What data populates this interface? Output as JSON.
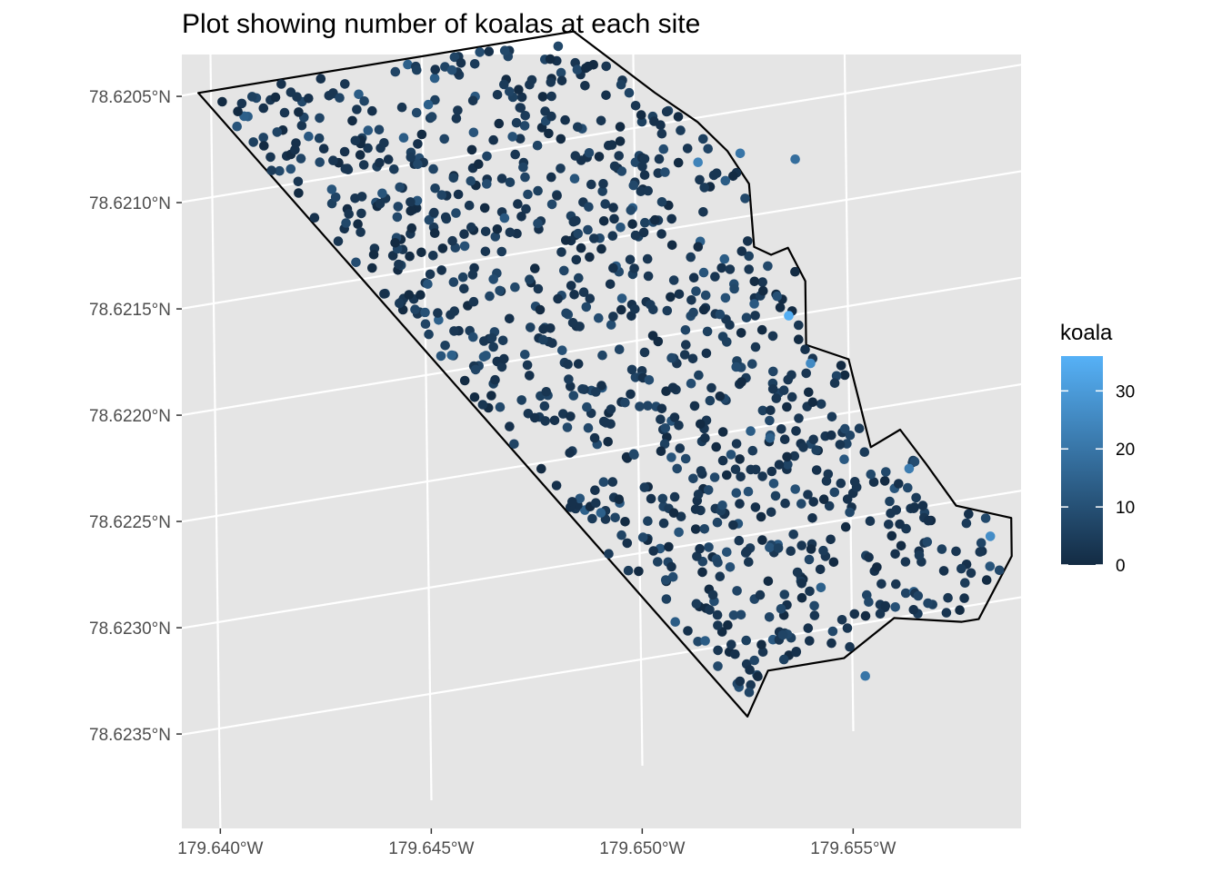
{
  "chart_data": {
    "type": "scatter",
    "title": "Plot showing number of koalas at each site",
    "xlabel": "",
    "ylabel": "",
    "x_ticks": [
      "179.640°W",
      "179.645°W",
      "179.650°W",
      "179.655°W"
    ],
    "y_ticks": [
      "78.6205°N",
      "78.6210°N",
      "78.6215°N",
      "78.6220°N",
      "78.6225°N",
      "78.6230°N",
      "78.6235°N"
    ],
    "x_tick_values": [
      -179.64,
      -179.645,
      -179.65,
      -179.655
    ],
    "y_tick_values": [
      78.6205,
      78.621,
      78.6215,
      78.622,
      78.6225,
      78.623,
      78.6235
    ],
    "xlim": [
      -179.6396,
      -179.6593
    ],
    "ylim": [
      78.62035,
      78.62394
    ],
    "grid": true,
    "point_count": 1000,
    "color_scale": {
      "name": "koala",
      "low_color": "#132B43",
      "high_color": "#56B1F7",
      "range": [
        0,
        36
      ],
      "ticks": [
        "0",
        "10",
        "20",
        "30"
      ],
      "tick_values": [
        0,
        10,
        20,
        30
      ]
    },
    "legend_placement": "right",
    "boundary": {
      "lon": [
        -179.6397,
        -179.6486,
        -179.6505,
        -179.6515,
        -179.6522,
        -179.6527,
        -179.6528,
        -179.6532,
        -179.6536,
        -179.654,
        -179.654,
        -179.655,
        -179.655,
        -179.6555,
        -179.6562,
        -179.6568,
        -179.6575,
        -179.6588,
        -179.6588,
        -179.658,
        -179.6576,
        -179.656,
        -179.6548,
        -179.653,
        -179.6525
      ],
      "lat": [
        78.6205,
        78.6205,
        78.62085,
        78.62102,
        78.62118,
        78.62135,
        78.62165,
        78.6217,
        78.62168,
        78.62185,
        78.62215,
        78.62225,
        78.62225,
        78.62268,
        78.62262,
        78.6228,
        78.62302,
        78.62312,
        78.6233,
        78.62357,
        78.62357,
        78.6235,
        78.62365,
        78.62365,
        78.62385
      ]
    },
    "highlighted_points": [
      {
        "lon": -179.6536,
        "lat": 78.622,
        "koala": 35
      },
      {
        "lon": -179.6515,
        "lat": 78.62121,
        "koala": 22
      },
      {
        "lon": -179.6525,
        "lat": 78.6212,
        "koala": 18
      },
      {
        "lon": -179.6541,
        "lat": 78.62224,
        "koala": 24
      },
      {
        "lon": -179.6583,
        "lat": 78.62319,
        "koala": 25
      },
      {
        "lon": -179.6564,
        "lat": 78.62281,
        "koala": 20
      },
      {
        "lon": -179.6553,
        "lat": 78.62375,
        "koala": 18
      },
      {
        "lon": -179.6538,
        "lat": 78.62127,
        "koala": 16
      }
    ]
  }
}
